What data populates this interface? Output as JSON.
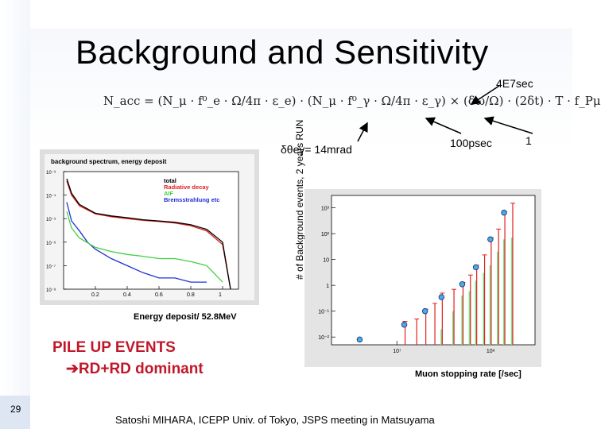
{
  "slide": {
    "title": "Background and Sensitivity",
    "page_number": "29",
    "footer": "Satoshi MIHARA,  ICEPP Univ. of Tokyo, JSPS meeting in Matsuyama"
  },
  "formula": {
    "text": "N_acc = (N_μ · f⁰_e · Ω/4π · ε_e) · (N_μ · f⁰_γ · Ω/4π · ε_γ) × (δω/Ω) · (2δt) · T · f_Pμ",
    "annotations": {
      "time": "4E7sec",
      "angle": "δθeγ= 14mrad",
      "timing": "100psec",
      "polarization": "1"
    }
  },
  "left_panel": {
    "pile_up_line1": "PILE UP EVENTS",
    "pile_up_line2": "RD+RD dominant",
    "pile_up_arrow": "➔",
    "energy_label": "Energy deposit/ 52.8MeV"
  },
  "right_panel": {
    "ylabel": "# of Background events, 2 years RUN",
    "xlabel": "Muon stopping rate [/sec]"
  },
  "chart_data": [
    {
      "type": "line",
      "title": "background spectrum, energy deposit",
      "xlabel": "Energy deposit/ 52.8MeV",
      "ylabel": "",
      "legend": {
        "placement": "top-right"
      },
      "xlim": [
        0,
        1.1
      ],
      "ylim": [
        1e-08,
        0.001
      ],
      "yscale": "log",
      "x_ticks": [
        "0.2",
        "0.4",
        "0.6",
        "0.8",
        "1"
      ],
      "y_ticks": [
        "10⁻³",
        "10⁻⁴",
        "10⁻⁵",
        "10⁻⁶",
        "10⁻⁷",
        "10⁻⁸"
      ],
      "series": [
        {
          "name": "total",
          "color": "#000000",
          "x": [
            0.02,
            0.05,
            0.1,
            0.2,
            0.3,
            0.4,
            0.5,
            0.6,
            0.7,
            0.8,
            0.9,
            1.0,
            1.05
          ],
          "values": [
            0.0005,
            0.00012,
            4e-05,
            1.7e-05,
            1.3e-05,
            1.1e-05,
            9e-06,
            8e-06,
            7e-06,
            5.5e-06,
            3.5e-06,
            1e-06,
            1e-08
          ]
        },
        {
          "name": "Radiative decay",
          "color": "#e02020",
          "x": [
            0.02,
            0.05,
            0.1,
            0.2,
            0.3,
            0.4,
            0.5,
            0.6,
            0.7,
            0.8,
            0.9,
            1.0,
            1.05
          ],
          "values": [
            0.0004,
            0.0001,
            3.5e-05,
            1.6e-05,
            1.2e-05,
            1e-05,
            8.5e-06,
            7.5e-06,
            6.5e-06,
            5e-06,
            3e-06,
            8e-07,
            1e-08
          ]
        },
        {
          "name": "AIF",
          "color": "#40d040",
          "x": [
            0.02,
            0.05,
            0.1,
            0.2,
            0.3,
            0.4,
            0.5,
            0.6,
            0.7,
            0.8,
            0.9,
            1.0
          ],
          "values": [
            2e-05,
            4e-06,
            1.5e-06,
            6e-07,
            4e-07,
            3e-07,
            2.5e-07,
            2e-07,
            2e-07,
            1.5e-07,
            1e-07,
            2e-08
          ]
        },
        {
          "name": "Bremsstrahlung etc",
          "color": "#2030d0",
          "x": [
            0.02,
            0.05,
            0.1,
            0.15,
            0.2,
            0.3,
            0.4,
            0.5,
            0.6,
            0.7,
            0.8,
            0.9
          ],
          "values": [
            5e-05,
            8e-06,
            3e-06,
            1e-06,
            5e-07,
            2e-07,
            1e-07,
            5e-08,
            3e-08,
            3e-08,
            2e-08,
            2e-08
          ]
        }
      ]
    },
    {
      "type": "scatter",
      "title": "",
      "xlabel": "Muon stopping rate [/sec]",
      "ylabel": "# of Background events, 2 years RUN",
      "xscale": "log",
      "yscale": "log",
      "ylim": [
        0.005,
        3000
      ],
      "x_ticks": [
        "10⁷",
        "10⁸"
      ],
      "y_ticks": [
        "10⁻²",
        "10⁻¹",
        "1",
        "10",
        "10²",
        "10³"
      ],
      "series": [
        {
          "name": "",
          "color": "#4fa8e0",
          "x": [
            4000000.0,
            12000000.0,
            20000000.0,
            30000000.0,
            50000000.0,
            70000000.0,
            100000000.0,
            140000000.0
          ],
          "values": [
            0.008,
            0.03,
            0.1,
            0.35,
            1.1,
            5,
            60,
            650
          ]
        },
        {
          "name": "",
          "color": "#e02020",
          "bars": true,
          "x": [
            12000000.0,
            16000000.0,
            20000000.0,
            25000000.0,
            30000000.0,
            40000000.0,
            50000000.0,
            60000000.0,
            70000000.0,
            85000000.0,
            100000000.0,
            120000000.0,
            140000000.0,
            170000000.0
          ],
          "values": [
            0.04,
            0.05,
            0.12,
            0.2,
            0.5,
            0.7,
            1.3,
            2.5,
            6,
            15,
            70,
            150,
            700,
            1500
          ]
        },
        {
          "name": "",
          "color": "#7ee07e",
          "bars": true,
          "x": [
            30000000.0,
            40000000.0,
            50000000.0,
            60000000.0,
            70000000.0,
            85000000.0,
            100000000.0,
            120000000.0,
            140000000.0,
            170000000.0
          ],
          "values": [
            0.02,
            0.1,
            0.4,
            0.6,
            1.5,
            3,
            6,
            20,
            60,
            70
          ]
        }
      ]
    }
  ]
}
